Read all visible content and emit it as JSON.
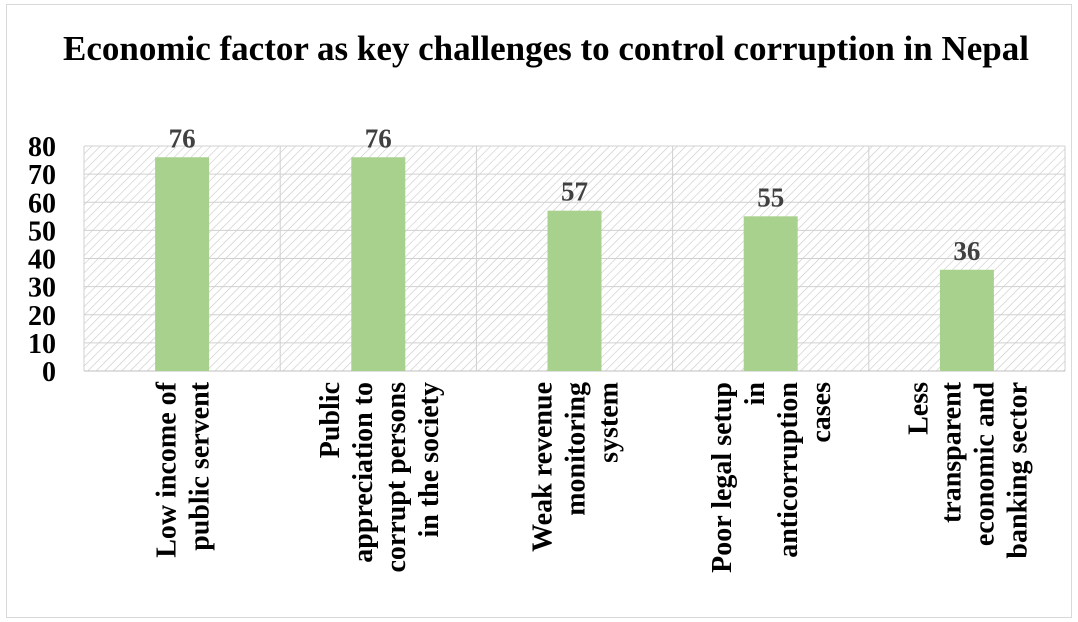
{
  "chart_data": {
    "type": "bar",
    "title": "Economic factor as key challenges to control corruption in Nepal",
    "categories": [
      [
        "Low income of",
        "public servent"
      ],
      [
        "Public",
        "appreciation to",
        "corrupt persons",
        "in the society"
      ],
      [
        "Weak revenue",
        "monitoring",
        "system"
      ],
      [
        "Poor legal setup",
        "in",
        "anticorruption",
        "cases"
      ],
      [
        "Less",
        "transparent",
        "economic and",
        "banking sector"
      ]
    ],
    "values": [
      76,
      76,
      57,
      55,
      36
    ],
    "data_labels": [
      "76",
      "76",
      "57",
      "55",
      "36"
    ],
    "y_ticks": [
      "0",
      "10",
      "20",
      "30",
      "40",
      "50",
      "60",
      "70",
      "80"
    ],
    "ylim": [
      0,
      80
    ],
    "xlabel": "",
    "ylabel": "",
    "grid": true,
    "legend": "none",
    "colors": {
      "bar": "#a9d18e",
      "hatch": "#c8c8c8",
      "text": "#000000",
      "data_label": "#404040"
    }
  }
}
